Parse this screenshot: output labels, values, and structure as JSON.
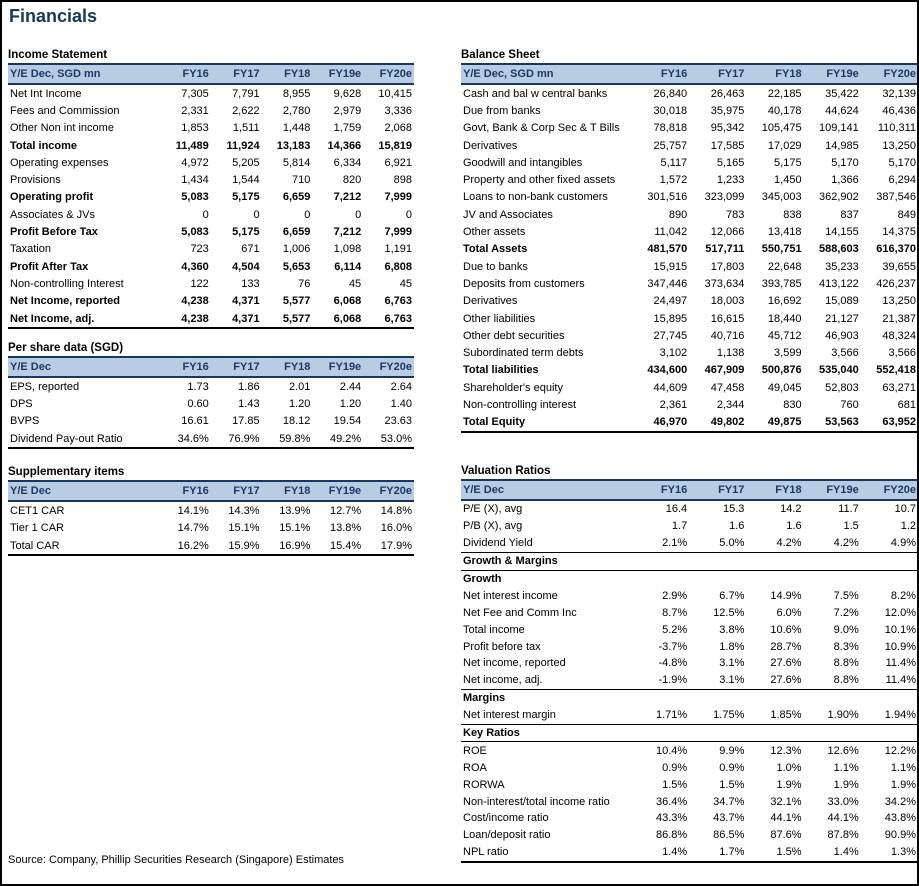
{
  "page_title": "Financials",
  "source_note": "Source: Company, Phillip Securities Research (Singapore) Estimates",
  "colors": {
    "title_color": "#17375e",
    "header_bg": "#b8cce4",
    "header_text": "#1f3864",
    "header_border": "#17375e",
    "rule_color": "#000000"
  },
  "tables": {
    "income_statement": {
      "title": "Income Statement",
      "header": [
        "Y/E Dec, SGD mn",
        "FY16",
        "FY17",
        "FY18",
        "FY19e",
        "FY20e"
      ],
      "rows": [
        {
          "label": "Net Int Income",
          "values": [
            "7,305",
            "7,791",
            "8,955",
            "9,628",
            "10,415"
          ]
        },
        {
          "label": "Fees and Commission",
          "values": [
            "2,331",
            "2,622",
            "2,780",
            "2,979",
            "3,336"
          ]
        },
        {
          "label": "Other Non int income",
          "values": [
            "1,853",
            "1,511",
            "1,448",
            "1,759",
            "2,068"
          ]
        },
        {
          "label": "Total income",
          "bold": true,
          "values": [
            "11,489",
            "11,924",
            "13,183",
            "14,366",
            "15,819"
          ]
        },
        {
          "label": "Operating expenses",
          "values": [
            "4,972",
            "5,205",
            "5,814",
            "6,334",
            "6,921"
          ]
        },
        {
          "label": "Provisions",
          "values": [
            "1,434",
            "1,544",
            "710",
            "820",
            "898"
          ]
        },
        {
          "label": "Operating profit",
          "bold": true,
          "values": [
            "5,083",
            "5,175",
            "6,659",
            "7,212",
            "7,999"
          ]
        },
        {
          "label": "Associates & JVs",
          "values": [
            "0",
            "0",
            "0",
            "0",
            "0"
          ]
        },
        {
          "label": "Profit Before Tax",
          "bold": true,
          "values": [
            "5,083",
            "5,175",
            "6,659",
            "7,212",
            "7,999"
          ]
        },
        {
          "label": "Taxation",
          "values": [
            "723",
            "671",
            "1,006",
            "1,098",
            "1,191"
          ]
        },
        {
          "label": "Profit After Tax",
          "bold": true,
          "values": [
            "4,360",
            "4,504",
            "5,653",
            "6,114",
            "6,808"
          ]
        },
        {
          "label": "Non-controlling Interest",
          "values": [
            "122",
            "133",
            "76",
            "45",
            "45"
          ]
        },
        {
          "label": "Net Income, reported",
          "bold": true,
          "values": [
            "4,238",
            "4,371",
            "5,577",
            "6,068",
            "6,763"
          ]
        },
        {
          "label": "Net Income, adj.",
          "bold": true,
          "values": [
            "4,238",
            "4,371",
            "5,577",
            "6,068",
            "6,763"
          ]
        }
      ]
    },
    "per_share": {
      "title": "Per share data (SGD)",
      "header": [
        "Y/E Dec",
        "FY16",
        "FY17",
        "FY18",
        "FY19e",
        "FY20e"
      ],
      "rows": [
        {
          "label": "EPS, reported",
          "values": [
            "1.73",
            "1.86",
            "2.01",
            "2.44",
            "2.64"
          ]
        },
        {
          "label": "DPS",
          "values": [
            "0.60",
            "1.43",
            "1.20",
            "1.20",
            "1.40"
          ]
        },
        {
          "label": "BVPS",
          "values": [
            "16.61",
            "17.85",
            "18.12",
            "19.54",
            "23.63"
          ]
        },
        {
          "label": "Dividend Pay-out Ratio",
          "values": [
            "34.6%",
            "76.9%",
            "59.8%",
            "49.2%",
            "53.0%"
          ]
        }
      ]
    },
    "supplementary": {
      "title": "Supplementary items",
      "header": [
        "Y/E Dec",
        "FY16",
        "FY17",
        "FY18",
        "FY19e",
        "FY20e"
      ],
      "rows": [
        {
          "label": "CET1 CAR",
          "values": [
            "14.1%",
            "14.3%",
            "13.9%",
            "12.7%",
            "14.8%"
          ]
        },
        {
          "label": "Tier 1 CAR",
          "values": [
            "14.7%",
            "15.1%",
            "15.1%",
            "13.8%",
            "16.0%"
          ]
        },
        {
          "label": "Total CAR",
          "values": [
            "16.2%",
            "15.9%",
            "16.9%",
            "15.4%",
            "17.9%"
          ]
        }
      ]
    },
    "balance_sheet": {
      "title": "Balance Sheet",
      "header": [
        "Y/E Dec, SGD mn",
        "FY16",
        "FY17",
        "FY18",
        "FY19e",
        "FY20e"
      ],
      "rows": [
        {
          "label": "Cash and bal w central banks",
          "values": [
            "26,840",
            "26,463",
            "22,185",
            "35,422",
            "32,139"
          ]
        },
        {
          "label": "Due from banks",
          "values": [
            "30,018",
            "35,975",
            "40,178",
            "44,624",
            "46,436"
          ]
        },
        {
          "label": "Govt, Bank & Corp Sec & T Bills",
          "values": [
            "78,818",
            "95,342",
            "105,475",
            "109,141",
            "110,311"
          ]
        },
        {
          "label": "Derivatives",
          "values": [
            "25,757",
            "17,585",
            "17,029",
            "14,985",
            "13,250"
          ]
        },
        {
          "label": "Goodwill and intangibles",
          "values": [
            "5,117",
            "5,165",
            "5,175",
            "5,170",
            "5,170"
          ]
        },
        {
          "label": "Property and other fixed assets",
          "values": [
            "1,572",
            "1,233",
            "1,450",
            "1,366",
            "6,294"
          ]
        },
        {
          "label": "Loans to non-bank customers",
          "values": [
            "301,516",
            "323,099",
            "345,003",
            "362,902",
            "387,546"
          ]
        },
        {
          "label": "JV and Associates",
          "values": [
            "890",
            "783",
            "838",
            "837",
            "849"
          ]
        },
        {
          "label": "Other assets",
          "values": [
            "11,042",
            "12,066",
            "13,418",
            "14,155",
            "14,375"
          ]
        },
        {
          "label": "Total Assets",
          "bold": true,
          "values": [
            "481,570",
            "517,711",
            "550,751",
            "588,603",
            "616,370"
          ]
        },
        {
          "label": "Due to banks",
          "values": [
            "15,915",
            "17,803",
            "22,648",
            "35,233",
            "39,655"
          ]
        },
        {
          "label": "Deposits from customers",
          "values": [
            "347,446",
            "373,634",
            "393,785",
            "413,122",
            "426,237"
          ]
        },
        {
          "label": "Derivatives",
          "values": [
            "24,497",
            "18,003",
            "16,692",
            "15,089",
            "13,250"
          ]
        },
        {
          "label": "Other liabilities",
          "values": [
            "15,895",
            "16,615",
            "18,440",
            "21,127",
            "21,387"
          ]
        },
        {
          "label": "Other debt securities",
          "values": [
            "27,745",
            "40,716",
            "45,712",
            "46,903",
            "48,324"
          ]
        },
        {
          "label": "Subordinated term debts",
          "values": [
            "3,102",
            "1,138",
            "3,599",
            "3,566",
            "3,566"
          ]
        },
        {
          "label": "Total liabilities",
          "bold": true,
          "values": [
            "434,600",
            "467,909",
            "500,876",
            "535,040",
            "552,418"
          ]
        },
        {
          "label": "Shareholder's equity",
          "values": [
            "44,609",
            "47,458",
            "49,045",
            "52,803",
            "63,271"
          ]
        },
        {
          "label": "Non-controlling interest",
          "values": [
            "2,361",
            "2,344",
            "830",
            "760",
            "681"
          ]
        },
        {
          "label": "Total Equity",
          "bold": true,
          "values": [
            "46,970",
            "49,802",
            "49,875",
            "53,563",
            "63,952"
          ]
        }
      ]
    },
    "valuation": {
      "title": "Valuation Ratios",
      "header": [
        "Y/E Dec",
        "FY16",
        "FY17",
        "FY18",
        "FY19e",
        "FY20e"
      ],
      "rows": [
        {
          "label": "P/E (X), avg",
          "values": [
            "16.4",
            "15.3",
            "14.2",
            "11.7",
            "10.7"
          ]
        },
        {
          "label": "P/B (X), avg",
          "values": [
            "1.7",
            "1.6",
            "1.6",
            "1.5",
            "1.2"
          ]
        },
        {
          "label": "Dividend Yield",
          "values": [
            "2.1%",
            "5.0%",
            "4.2%",
            "4.2%",
            "4.9%"
          ]
        },
        {
          "label": "Growth & Margins",
          "section": true,
          "rule_top": true,
          "rule_bottom": true
        },
        {
          "label": "Growth",
          "section": true
        },
        {
          "label": "Net interest income",
          "values": [
            "2.9%",
            "6.7%",
            "14.9%",
            "7.5%",
            "8.2%"
          ]
        },
        {
          "label": "Net Fee and Comm Inc",
          "values": [
            "8.7%",
            "12.5%",
            "6.0%",
            "7.2%",
            "12.0%"
          ]
        },
        {
          "label": "Total income",
          "values": [
            "5.2%",
            "3.8%",
            "10.6%",
            "9.0%",
            "10.1%"
          ]
        },
        {
          "label": "Profit before tax",
          "values": [
            "-3.7%",
            "1.8%",
            "28.7%",
            "8.3%",
            "10.9%"
          ]
        },
        {
          "label": "Net income, reported",
          "values": [
            "-4.8%",
            "3.1%",
            "27.6%",
            "8.8%",
            "11.4%"
          ]
        },
        {
          "label": "Net income, adj.",
          "values": [
            "-1.9%",
            "3.1%",
            "27.6%",
            "8.8%",
            "11.4%"
          ]
        },
        {
          "label": "Margins",
          "section": true,
          "rule_top": true
        },
        {
          "label": "Net interest margin",
          "values": [
            "1.71%",
            "1.75%",
            "1.85%",
            "1.90%",
            "1.94%"
          ]
        },
        {
          "label": "Key Ratios",
          "section": true,
          "rule_top": true,
          "rule_bottom": true
        },
        {
          "label": "ROE",
          "values": [
            "10.4%",
            "9.9%",
            "12.3%",
            "12.6%",
            "12.2%"
          ]
        },
        {
          "label": "ROA",
          "values": [
            "0.9%",
            "0.9%",
            "1.0%",
            "1.1%",
            "1.1%"
          ]
        },
        {
          "label": "RORWA",
          "values": [
            "1.5%",
            "1.5%",
            "1.9%",
            "1.9%",
            "1.9%"
          ]
        },
        {
          "label": "Non-interest/total income ratio",
          "values": [
            "36.4%",
            "34.7%",
            "32.1%",
            "33.0%",
            "34.2%"
          ]
        },
        {
          "label": "Cost/income ratio",
          "values": [
            "43.3%",
            "43.7%",
            "44.1%",
            "44.1%",
            "43.8%"
          ]
        },
        {
          "label": "Loan/deposit ratio",
          "values": [
            "86.8%",
            "86.5%",
            "87.6%",
            "87.8%",
            "90.9%"
          ]
        },
        {
          "label": "NPL ratio",
          "values": [
            "1.4%",
            "1.7%",
            "1.5%",
            "1.4%",
            "1.3%"
          ]
        }
      ]
    }
  }
}
